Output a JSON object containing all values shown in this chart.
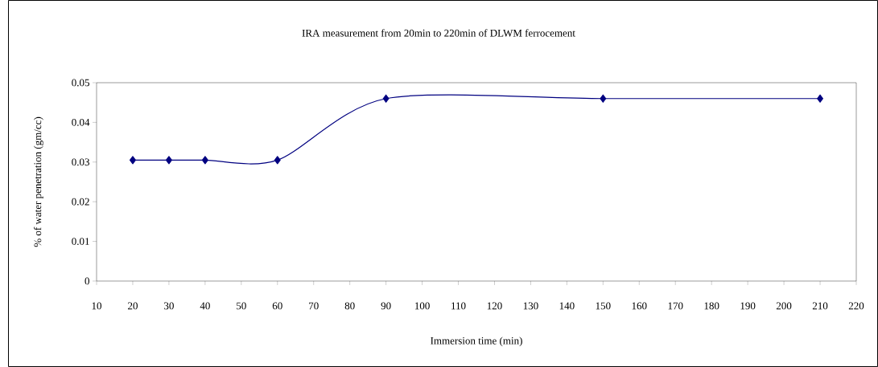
{
  "chart_data": {
    "type": "line",
    "title": "IRA measurement from 20min to 220min of DLWM ferrocement",
    "xlabel": "Immersion time (min)",
    "ylabel": "% of water penetration (gm/cc)",
    "x": [
      20,
      30,
      40,
      60,
      90,
      150,
      210
    ],
    "series": [
      {
        "color": "#000080",
        "values": [
          0.0305,
          0.0305,
          0.0305,
          0.0305,
          0.046,
          0.046,
          0.046
        ]
      }
    ],
    "xlim": [
      10,
      220
    ],
    "xticks": [
      10,
      20,
      30,
      40,
      50,
      60,
      70,
      80,
      90,
      100,
      110,
      120,
      130,
      140,
      150,
      160,
      170,
      180,
      190,
      200,
      210,
      220
    ],
    "ylim": [
      0,
      0.05
    ],
    "yticks": [
      0,
      0.01,
      0.02,
      0.03,
      0.04,
      0.05
    ],
    "marker": "diamond",
    "line_style": "solid"
  }
}
